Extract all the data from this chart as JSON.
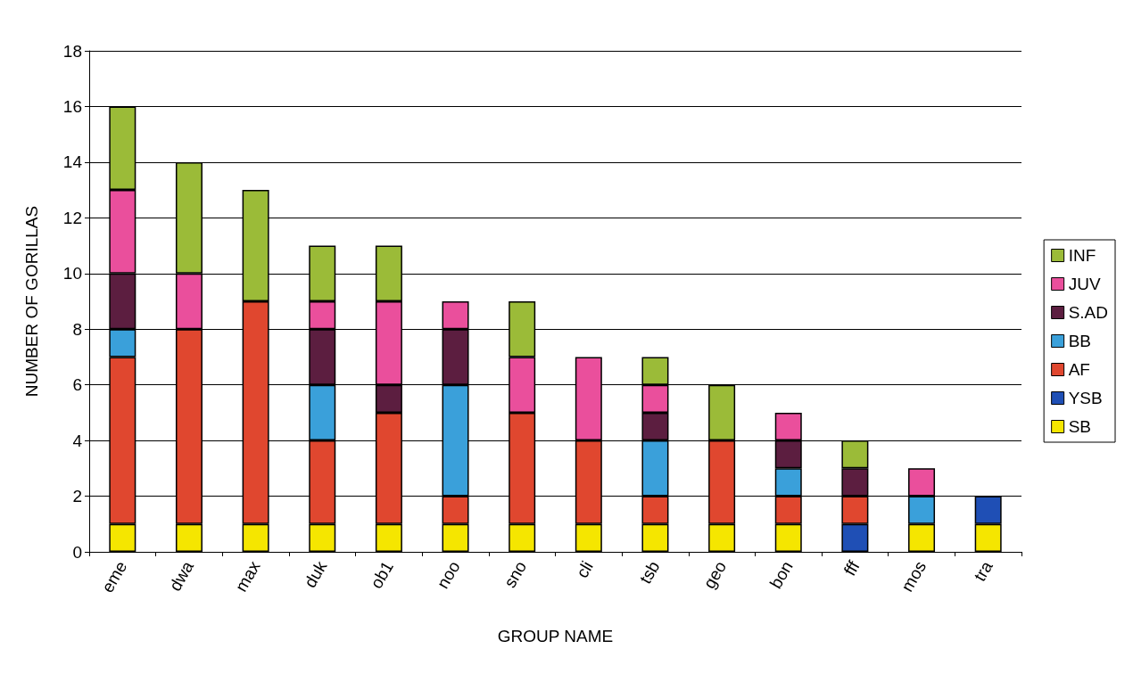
{
  "chart_data": {
    "type": "bar",
    "stacked": true,
    "xlabel": "GROUP NAME",
    "ylabel": "NUMBER OF GORILLAS",
    "categories": [
      "eme",
      "dwa",
      "max",
      "duk",
      "ob1",
      "noo",
      "sno",
      "cli",
      "tsb",
      "geo",
      "bon",
      "fff",
      "mos",
      "tra"
    ],
    "series": [
      {
        "name": "SB",
        "color": "#f5e600",
        "values": [
          1,
          1,
          1,
          1,
          1,
          1,
          1,
          1,
          1,
          1,
          1,
          null,
          1,
          1
        ]
      },
      {
        "name": "YSB",
        "color": "#1f4fb5",
        "values": [
          null,
          null,
          null,
          null,
          null,
          null,
          null,
          null,
          null,
          null,
          null,
          1,
          null,
          1
        ]
      },
      {
        "name": "AF",
        "color": "#e0472f",
        "values": [
          6,
          7,
          8,
          3,
          4,
          1,
          4,
          3,
          1,
          3,
          1,
          1,
          null,
          null
        ]
      },
      {
        "name": "BB",
        "color": "#3aa0da",
        "values": [
          1,
          null,
          null,
          2,
          null,
          4,
          null,
          null,
          2,
          null,
          1,
          null,
          1,
          null
        ]
      },
      {
        "name": "S.AD",
        "color": "#5c1e40",
        "values": [
          2,
          null,
          null,
          2,
          1,
          2,
          null,
          null,
          1,
          null,
          1,
          1,
          null,
          null
        ]
      },
      {
        "name": "JUV",
        "color": "#ea4f9c",
        "values": [
          3,
          2,
          null,
          1,
          3,
          1,
          2,
          3,
          1,
          null,
          1,
          null,
          1,
          null
        ]
      },
      {
        "name": "INF",
        "color": "#9bbb38",
        "values": [
          3,
          4,
          4,
          2,
          2,
          null,
          2,
          null,
          1,
          2,
          null,
          1,
          null,
          null
        ]
      }
    ],
    "ylim": [
      0,
      18
    ],
    "yticks": [
      0,
      2,
      4,
      6,
      8,
      10,
      12,
      14,
      16,
      18
    ],
    "grid": "y",
    "legend": "right"
  }
}
